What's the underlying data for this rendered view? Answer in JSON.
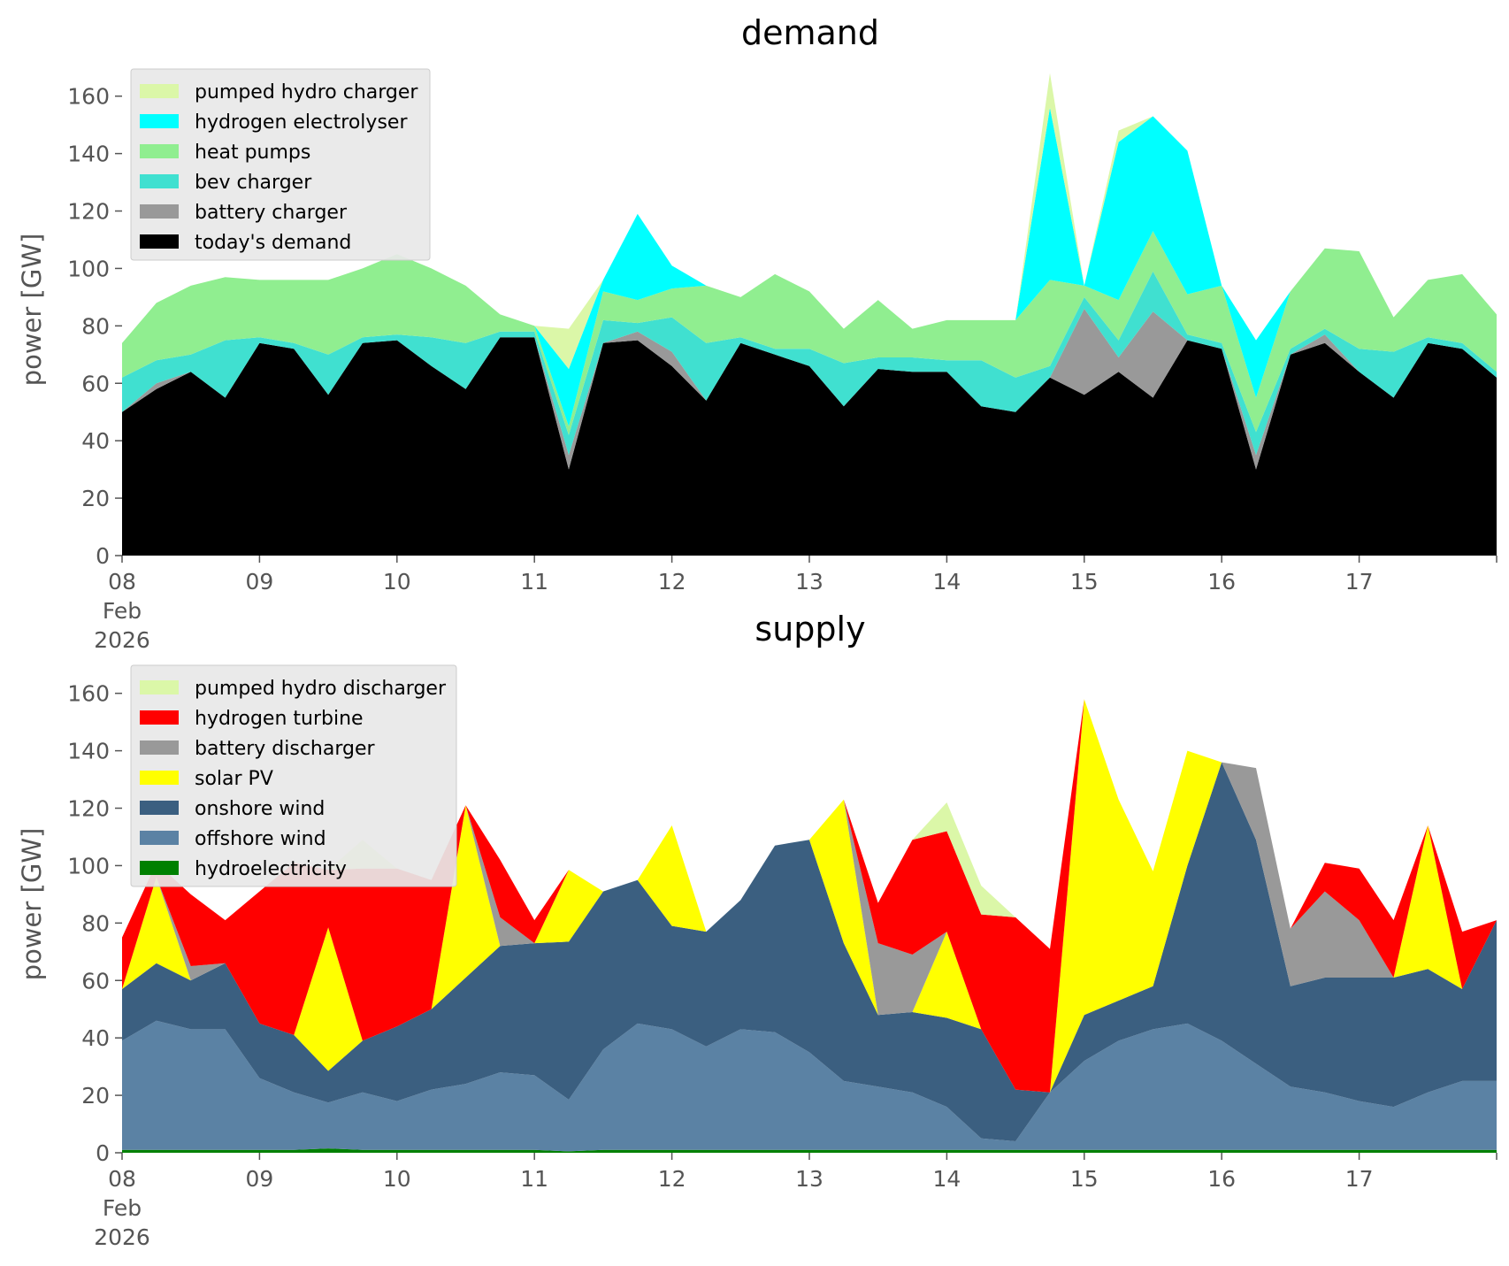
{
  "chart_data": [
    {
      "type": "area",
      "stacked": true,
      "title": "demand",
      "ylabel": "power [GW]",
      "ylim": [
        0,
        175
      ],
      "y_ticks": [
        0,
        20,
        40,
        60,
        80,
        100,
        120,
        140,
        160
      ],
      "x_tick_labels": [
        "08\nFeb\n2026",
        "09",
        "10",
        "11",
        "12",
        "13",
        "14",
        "15",
        "16",
        "17"
      ],
      "x_range_days": [
        0,
        10
      ],
      "grid": false,
      "legend_position": "top-left",
      "legend": [
        "pumped hydro charger",
        "hydrogen electrolyser",
        "heat pumps",
        "bev charger",
        "battery charger",
        "today's demand"
      ],
      "x_days": [
        0,
        0.25,
        0.5,
        0.75,
        1,
        1.25,
        1.5,
        1.75,
        2,
        2.25,
        2.5,
        2.75,
        3,
        3.25,
        3.5,
        3.75,
        4,
        4.25,
        4.5,
        4.75,
        5,
        5.25,
        5.5,
        5.75,
        6,
        6.25,
        6.5,
        6.75,
        7,
        7.25,
        7.5,
        7.75,
        8,
        8.25,
        8.5,
        8.75,
        9,
        9.25,
        9.5,
        9.75,
        10
      ],
      "series": [
        {
          "name": "today's demand",
          "color": "#000000",
          "values": [
            50,
            58,
            64,
            55,
            74,
            72,
            56,
            74,
            75,
            66,
            58,
            76,
            76,
            30,
            74,
            75,
            66,
            54,
            74,
            70,
            66,
            52,
            65,
            64,
            64,
            52,
            50,
            62,
            56,
            64,
            55,
            75,
            72,
            30,
            70,
            74,
            64,
            55,
            74,
            72,
            62
          ]
        },
        {
          "name": "battery charger",
          "color": "#999999",
          "values": [
            0,
            2,
            0,
            0,
            0,
            0,
            0,
            0,
            0,
            0,
            0,
            0,
            0,
            5,
            0,
            3,
            5,
            0,
            0,
            0,
            0,
            0,
            0,
            0,
            0,
            0,
            0,
            0,
            30,
            5,
            30,
            0,
            0,
            5,
            0,
            3,
            0,
            0,
            0,
            0,
            0
          ]
        },
        {
          "name": "bev charger",
          "color": "#40e0d0",
          "values": [
            12,
            8,
            6,
            20,
            2,
            2,
            14,
            2,
            2,
            10,
            16,
            2,
            2,
            7,
            8,
            3,
            12,
            20,
            2,
            2,
            6,
            15,
            4,
            5,
            4,
            16,
            12,
            4,
            4,
            6,
            14,
            2,
            2,
            8,
            2,
            2,
            8,
            16,
            2,
            2,
            2
          ]
        },
        {
          "name": "heat pumps",
          "color": "#90ee90",
          "values": [
            12,
            20,
            24,
            22,
            20,
            22,
            26,
            24,
            28,
            24,
            20,
            6,
            2,
            3,
            10,
            8,
            10,
            20,
            14,
            26,
            20,
            12,
            20,
            10,
            14,
            14,
            20,
            30,
            4,
            14,
            14,
            14,
            20,
            12,
            20,
            28,
            34,
            12,
            20,
            24,
            20
          ]
        },
        {
          "name": "hydrogen electrolyser",
          "color": "#00ffff",
          "values": [
            0,
            0,
            0,
            0,
            0,
            0,
            0,
            0,
            0,
            0,
            0,
            0,
            0,
            20,
            4,
            30,
            8,
            0,
            0,
            0,
            0,
            0,
            0,
            0,
            0,
            0,
            0,
            60,
            0,
            55,
            40,
            50,
            0,
            20,
            0,
            0,
            0,
            0,
            0,
            0,
            0
          ]
        },
        {
          "name": "pumped hydro charger",
          "color": "#dbf7a8",
          "values": [
            0,
            0,
            0,
            0,
            0,
            0,
            0,
            0,
            0,
            0,
            0,
            0,
            0,
            14,
            0,
            0,
            0,
            0,
            0,
            0,
            0,
            0,
            0,
            0,
            0,
            0,
            0,
            12,
            0,
            4,
            0,
            0,
            0,
            0,
            0,
            0,
            0,
            0,
            0,
            0,
            0
          ]
        }
      ]
    },
    {
      "type": "area",
      "stacked": true,
      "title": "supply",
      "ylabel": "power [GW]",
      "ylim": [
        0,
        175
      ],
      "y_ticks": [
        0,
        20,
        40,
        60,
        80,
        100,
        120,
        140,
        160
      ],
      "x_tick_labels": [
        "08\nFeb\n2026",
        "09",
        "10",
        "11",
        "12",
        "13",
        "14",
        "15",
        "16",
        "17"
      ],
      "x_range_days": [
        0,
        10
      ],
      "grid": false,
      "legend_position": "top-left",
      "legend": [
        "pumped hydro discharger",
        "hydrogen turbine",
        "battery discharger",
        "solar PV",
        "onshore wind",
        "offshore wind",
        "hydroelectricity"
      ],
      "x_days": [
        0,
        0.25,
        0.5,
        0.75,
        1,
        1.25,
        1.5,
        1.75,
        2,
        2.25,
        2.5,
        2.75,
        3,
        3.25,
        3.5,
        3.75,
        4,
        4.25,
        4.5,
        4.75,
        5,
        5.25,
        5.5,
        5.75,
        6,
        6.25,
        6.5,
        6.75,
        7,
        7.25,
        7.5,
        7.75,
        8,
        8.25,
        8.5,
        8.75,
        9,
        9.25,
        9.5,
        9.75,
        10
      ],
      "series": [
        {
          "name": "hydroelectricity",
          "color": "#008000",
          "values": [
            1,
            1,
            1,
            1,
            1,
            1,
            1.5,
            1,
            1,
            1,
            1,
            1,
            1,
            0.5,
            1,
            1,
            1,
            1,
            1,
            1,
            1,
            1,
            1,
            1,
            1,
            1,
            1,
            1,
            1,
            1,
            1,
            1,
            1,
            1,
            1,
            1,
            1,
            1,
            1,
            1,
            1
          ]
        },
        {
          "name": "offshore wind",
          "color": "#5b82a4",
          "values": [
            38,
            45,
            42,
            42,
            25,
            20,
            16,
            20,
            17,
            21,
            23,
            27,
            26,
            18,
            35,
            44,
            42,
            36,
            42,
            41,
            34,
            24,
            22,
            20,
            15,
            4,
            3,
            20,
            31,
            38,
            42,
            44,
            38,
            30,
            22,
            20,
            17,
            15,
            20,
            24,
            24
          ]
        },
        {
          "name": "onshore wind",
          "color": "#3b5f80",
          "values": [
            18,
            20,
            17,
            23,
            19,
            20,
            11,
            18,
            26,
            28,
            37,
            44,
            46,
            55,
            55,
            50,
            36,
            40,
            45,
            65,
            74,
            48,
            25,
            28,
            31,
            38,
            18,
            0,
            16,
            14,
            15,
            55,
            97,
            78,
            35,
            40,
            43,
            45,
            43,
            32,
            56
          ]
        },
        {
          "name": "solar PV",
          "color": "#ffff00",
          "values": [
            0,
            30,
            0,
            0,
            0,
            0,
            50,
            0,
            0,
            0,
            60,
            0,
            0,
            25,
            0,
            0,
            35,
            0,
            0,
            0,
            0,
            50,
            0,
            0,
            30,
            0,
            0,
            0,
            110,
            70,
            40,
            40,
            0,
            0,
            0,
            0,
            0,
            0,
            50,
            0,
            0
          ]
        },
        {
          "name": "battery discharger",
          "color": "#999999",
          "values": [
            0,
            0,
            5,
            0,
            0,
            0,
            0,
            0,
            0,
            0,
            0,
            10,
            0,
            0,
            0,
            0,
            0,
            0,
            0,
            0,
            0,
            0,
            25,
            20,
            0,
            0,
            0,
            0,
            0,
            0,
            0,
            0,
            0,
            25,
            20,
            30,
            20,
            0,
            0,
            0,
            0
          ]
        },
        {
          "name": "hydrogen turbine",
          "color": "#ff0000",
          "values": [
            18,
            5,
            25,
            15,
            46,
            60,
            20,
            60,
            55,
            45,
            0,
            20,
            8,
            0,
            0,
            0,
            0,
            0,
            0,
            0,
            0,
            0,
            14,
            40,
            35,
            40,
            60,
            50,
            0,
            0,
            0,
            0,
            0,
            0,
            0,
            10,
            18,
            20,
            0,
            20,
            0
          ]
        },
        {
          "name": "pumped hydro discharger",
          "color": "#dbf7a8",
          "values": [
            0,
            0,
            0,
            0,
            0,
            0,
            0,
            10,
            0,
            0,
            0,
            0,
            0,
            0,
            0,
            0,
            0,
            0,
            0,
            0,
            0,
            0,
            0,
            0,
            10,
            10,
            0,
            0,
            0,
            0,
            0,
            0,
            0,
            0,
            0,
            0,
            0,
            0,
            0,
            0,
            0
          ]
        }
      ]
    }
  ]
}
